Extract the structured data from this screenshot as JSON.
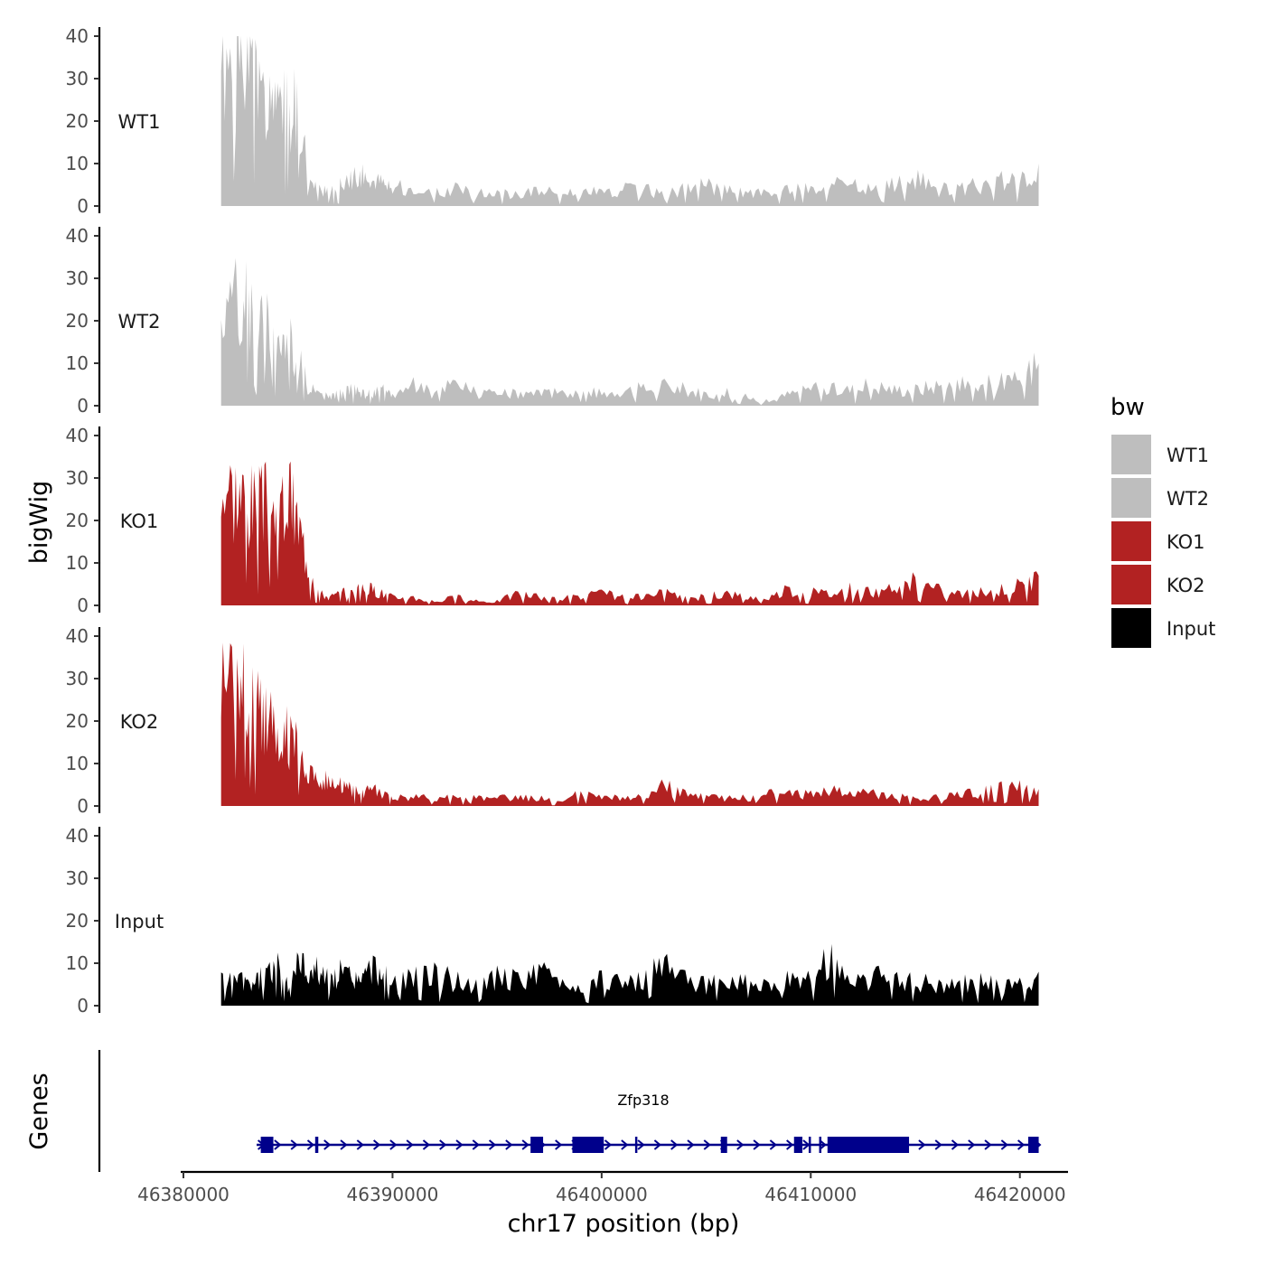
{
  "chart_data": {
    "type": "area",
    "chromosome": "chr17",
    "xlabel": "chr17 position (bp)",
    "ylabel_tracks": "bigWig",
    "ylabel_genes": "Genes",
    "xlim": [
      46379000,
      46423000
    ],
    "x_ticks": [
      46380000,
      46390000,
      46400000,
      46410000,
      46420000
    ],
    "x_tick_labels": [
      "46380000",
      "46390000",
      "46400000",
      "46410000",
      "46420000"
    ],
    "ylim": [
      0,
      40
    ],
    "y_ticks": [
      0,
      10,
      20,
      30,
      40
    ],
    "y_tick_labels": [
      "0",
      "10",
      "20",
      "30",
      "40"
    ],
    "signal_range": [
      46381800,
      46420900
    ],
    "legend": {
      "title": "bw",
      "position": "right",
      "entries": [
        {
          "label": "WT1",
          "color": "#bebebe"
        },
        {
          "label": "WT2",
          "color": "#bebebe"
        },
        {
          "label": "KO1",
          "color": "#b22222"
        },
        {
          "label": "KO2",
          "color": "#b22222"
        },
        {
          "label": "Input",
          "color": "#000000"
        }
      ]
    },
    "series": [
      {
        "name": "WT1",
        "color": "#bebebe",
        "x": [
          46381800,
          46382500,
          46383000,
          46383500,
          46384000,
          46384500,
          46385000,
          46385500,
          46386000,
          46386500,
          46387000,
          46387500,
          46388000,
          46388500,
          46389000,
          46389500,
          46390000,
          46391000,
          46392000,
          46393000,
          46394000,
          46395000,
          46396000,
          46397000,
          46398000,
          46399000,
          46400000,
          46401000,
          46402000,
          46403000,
          46404000,
          46405000,
          46406000,
          46407000,
          46408000,
          46409000,
          46410000,
          46411000,
          46412000,
          46413000,
          46414000,
          46415000,
          46416000,
          46417000,
          46418000,
          46419000,
          46420000,
          46420900
        ],
        "values": [
          32,
          34,
          36,
          30,
          22,
          22,
          24,
          26,
          6,
          4,
          3,
          5,
          6,
          8,
          5,
          6,
          5,
          4,
          3,
          4,
          3,
          3,
          3,
          4,
          3,
          4,
          3,
          4,
          4,
          3,
          4,
          5,
          4,
          3,
          3,
          4,
          4,
          5,
          5,
          4,
          5,
          7,
          4,
          4,
          5,
          6,
          6,
          10
        ]
      },
      {
        "name": "WT2",
        "color": "#bebebe",
        "x": [
          46381800,
          46382500,
          46383000,
          46383500,
          46384000,
          46384500,
          46385000,
          46385500,
          46386000,
          46386500,
          46387000,
          46387500,
          46388000,
          46388500,
          46389000,
          46389500,
          46390000,
          46391000,
          46392000,
          46393000,
          46394000,
          46395000,
          46396000,
          46397000,
          46398000,
          46399000,
          46400000,
          46401000,
          46402000,
          46403000,
          46404000,
          46405000,
          46406000,
          46407000,
          46408000,
          46409000,
          46410000,
          46411000,
          46412000,
          46413000,
          46414000,
          46415000,
          46416000,
          46417000,
          46418000,
          46419000,
          46420000,
          46420900
        ],
        "values": [
          24,
          27,
          25,
          22,
          20,
          18,
          16,
          12,
          4,
          3,
          2,
          3,
          4,
          3,
          3,
          4,
          3,
          5,
          3,
          6,
          3,
          3,
          3,
          3,
          3,
          4,
          3,
          4,
          4,
          5,
          4,
          3,
          3,
          2,
          1,
          3,
          4,
          4,
          4,
          5,
          4,
          4,
          5,
          5,
          5,
          6,
          6,
          10
        ]
      },
      {
        "name": "KO1",
        "color": "#b22222",
        "x": [
          46381800,
          46382500,
          46383000,
          46383500,
          46384000,
          46384500,
          46385000,
          46385500,
          46386000,
          46386500,
          46387000,
          46387500,
          46388000,
          46388500,
          46389000,
          46389500,
          46390000,
          46391000,
          46392000,
          46393000,
          46394000,
          46395000,
          46396000,
          46397000,
          46398000,
          46399000,
          46400000,
          46401000,
          46402000,
          46403000,
          46404000,
          46405000,
          46406000,
          46407000,
          46408000,
          46409000,
          46410000,
          46411000,
          46412000,
          46413000,
          46414000,
          46415000,
          46416000,
          46417000,
          46418000,
          46419000,
          46420000,
          46420900
        ],
        "values": [
          30,
          28,
          26,
          24,
          25,
          22,
          27,
          20,
          10,
          3,
          2,
          3,
          3,
          4,
          4,
          3,
          2,
          2,
          1,
          2,
          1,
          1,
          3,
          2,
          2,
          2,
          3,
          2,
          2,
          3,
          2,
          2,
          3,
          2,
          2,
          4,
          3,
          3,
          4,
          3,
          4,
          6,
          4,
          3,
          3,
          4,
          5,
          7
        ]
      },
      {
        "name": "KO2",
        "color": "#b22222",
        "x": [
          46381800,
          46382500,
          46383000,
          46383500,
          46384000,
          46384500,
          46385000,
          46385500,
          46386000,
          46386500,
          46387000,
          46387500,
          46388000,
          46388500,
          46389000,
          46389500,
          46390000,
          46391000,
          46392000,
          46393000,
          46394000,
          46395000,
          46396000,
          46397000,
          46398000,
          46399000,
          46400000,
          46401000,
          46402000,
          46403000,
          46404000,
          46405000,
          46406000,
          46407000,
          46408000,
          46409000,
          46410000,
          46411000,
          46412000,
          46413000,
          46414000,
          46415000,
          46416000,
          46417000,
          46418000,
          46419000,
          46420000,
          46420900
        ],
        "values": [
          38,
          30,
          28,
          24,
          22,
          20,
          17,
          14,
          8,
          6,
          6,
          5,
          4,
          3,
          4,
          3,
          2,
          2,
          2,
          2,
          2,
          2,
          2,
          2,
          1,
          3,
          2,
          2,
          2,
          5,
          3,
          2,
          2,
          2,
          3,
          3,
          3,
          4,
          3,
          3,
          3,
          2,
          2,
          3,
          3,
          5,
          5,
          4
        ]
      },
      {
        "name": "Input",
        "color": "#000000",
        "x": [
          46381800,
          46382500,
          46383000,
          46383500,
          46384000,
          46384500,
          46385000,
          46385500,
          46386000,
          46386500,
          46387000,
          46387500,
          46388000,
          46388500,
          46389000,
          46389500,
          46390000,
          46391000,
          46392000,
          46393000,
          46394000,
          46395000,
          46396000,
          46397000,
          46398000,
          46399000,
          46400000,
          46401000,
          46402000,
          46403000,
          46404000,
          46405000,
          46406000,
          46407000,
          46408000,
          46409000,
          46410000,
          46411000,
          46412000,
          46413000,
          46414000,
          46415000,
          46416000,
          46417000,
          46418000,
          46419000,
          46420000,
          46420900
        ],
        "values": [
          6,
          7,
          5,
          6,
          8,
          9,
          6,
          11,
          8,
          9,
          6,
          8,
          7,
          6,
          9,
          8,
          5,
          7,
          8,
          6,
          5,
          7,
          6,
          8,
          6,
          4,
          7,
          5,
          6,
          14,
          6,
          5,
          6,
          7,
          5,
          8,
          6,
          13,
          5,
          7,
          6,
          6,
          5,
          5,
          6,
          5,
          5,
          8
        ]
      }
    ],
    "gene": {
      "name": "Zfp318",
      "strand": "+",
      "color": "#00008b",
      "start": 46383500,
      "end": 46420900,
      "exons": [
        [
          46383700,
          46384300
        ],
        [
          46386300,
          46386450
        ],
        [
          46396600,
          46397200
        ],
        [
          46398600,
          46400100
        ],
        [
          46401600,
          46401700
        ],
        [
          46405700,
          46406000
        ],
        [
          46409200,
          46409600
        ],
        [
          46409900,
          46410000
        ],
        [
          46410400,
          46410500
        ],
        [
          46410800,
          46414700
        ],
        [
          46420400,
          46420900
        ]
      ]
    }
  }
}
